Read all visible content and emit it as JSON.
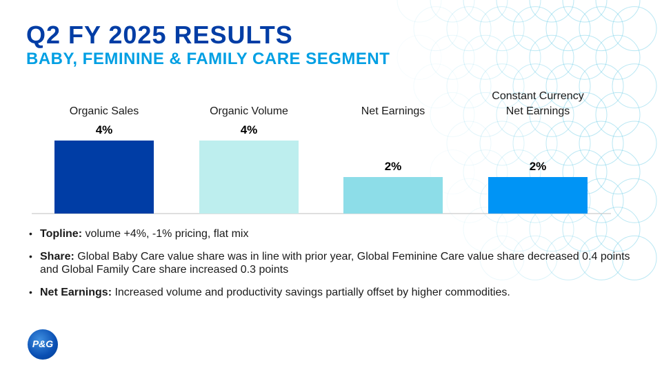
{
  "header": {
    "title": "Q2 FY 2025 RESULTS",
    "subtitle": "BABY, FEMININE & FAMILY CARE SEGMENT"
  },
  "chart_data": {
    "type": "bar",
    "categories": [
      "Organic Sales",
      "Organic Volume",
      "Net Earnings",
      "Constant Currency Net Earnings"
    ],
    "category_lines": [
      [
        "Organic Sales"
      ],
      [
        "Organic Volume"
      ],
      [
        "Net Earnings"
      ],
      [
        "Constant Currency",
        "Net Earnings"
      ]
    ],
    "values": [
      4,
      4,
      2,
      2
    ],
    "data_labels": [
      "4%",
      "4%",
      "2%",
      "2%"
    ],
    "colors": [
      "#003da5",
      "#bdeeee",
      "#8ddde8",
      "#0094f5"
    ],
    "ylim": [
      0,
      4
    ],
    "grid": false,
    "legend": "none"
  },
  "bullets": [
    {
      "label": "Topline:",
      "text": " volume +4%, -1% pricing, flat mix"
    },
    {
      "label": "Share:",
      "text": " Global Baby Care value share was in line with prior year, Global Feminine Care value share decreased 0.4 points and Global Family Care share increased 0.3 points"
    },
    {
      "label": "Net Earnings:",
      "text": " Increased volume and productivity savings partially offset by higher commodities."
    }
  ],
  "logo": {
    "text": "P&G"
  }
}
